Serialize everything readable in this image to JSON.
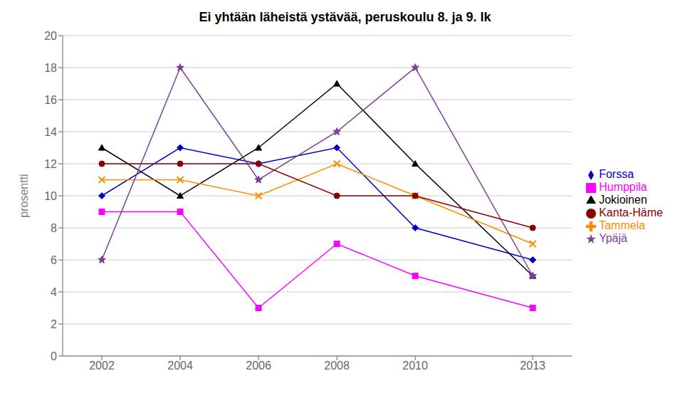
{
  "chart_data": {
    "type": "line",
    "title": "Ei yhtään läheistä ystävää, peruskoulu 8. ja 9. lk",
    "ylabel": "prosentti",
    "x": [
      2002,
      2004,
      2006,
      2008,
      2010,
      2013
    ],
    "xlim": [
      2001,
      2014
    ],
    "xticks": [
      2002,
      2004,
      2006,
      2008,
      2010,
      2013
    ],
    "ylim": [
      0,
      20
    ],
    "yticks": [
      0,
      2,
      4,
      6,
      8,
      10,
      12,
      14,
      16,
      18,
      20
    ],
    "grid": "y",
    "legend": "right",
    "series": [
      {
        "name": "Forssa",
        "color": "#0000CC",
        "marker": "diamond",
        "values": [
          10,
          13,
          12,
          13,
          8,
          6
        ]
      },
      {
        "name": "Humppila",
        "color": "#FF00FF",
        "marker": "square",
        "values": [
          9,
          9,
          3,
          7,
          5,
          3
        ]
      },
      {
        "name": "Jokioinen",
        "color": "#000000",
        "marker": "triangle",
        "values": [
          13,
          10,
          13,
          17,
          12,
          5
        ]
      },
      {
        "name": "Tammela",
        "color": "#FF8C00",
        "marker": "x",
        "values": [
          11,
          11,
          10,
          12,
          10,
          7
        ]
      },
      {
        "name": "Ypäjä",
        "color": "#7B3F9E",
        "marker": "star",
        "values": [
          6,
          18,
          11,
          14,
          18,
          5
        ]
      },
      {
        "name": "Kanta-Häme",
        "color": "#8B0000",
        "marker": "circle",
        "values": [
          12,
          12,
          12,
          10,
          10,
          8
        ]
      }
    ]
  }
}
